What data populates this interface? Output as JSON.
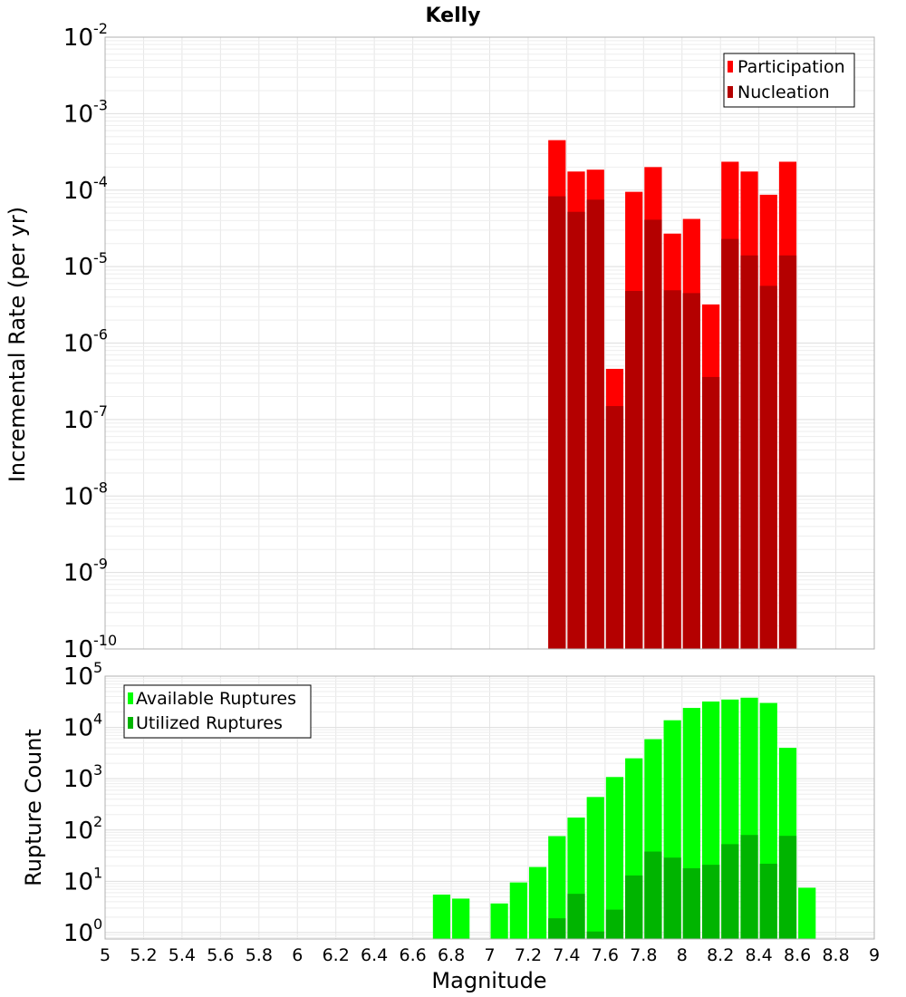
{
  "chart_data": [
    {
      "type": "bar",
      "title": "Kelly",
      "ylabel": "Incremental Rate (per yr)",
      "xlabel": "",
      "xlim": [
        5,
        9
      ],
      "ylim": [
        1e-10,
        0.01
      ],
      "yscale": "log",
      "bin_width": 0.1,
      "x_tick_values": [
        5,
        5.2,
        5.4,
        5.6,
        5.8,
        6,
        6.2,
        6.4,
        6.6,
        6.8,
        7,
        7.2,
        7.4,
        7.6,
        7.8,
        8,
        8.2,
        8.4,
        8.6,
        8.8,
        9
      ],
      "y_tick_exponents": [
        -10,
        -9,
        -8,
        -7,
        -6,
        -5,
        -4,
        -3,
        -2
      ],
      "legend_position": "top-right",
      "grid": true,
      "x": [
        7.35,
        7.45,
        7.55,
        7.65,
        7.75,
        7.85,
        7.95,
        8.05,
        8.15,
        8.25,
        8.35,
        8.45,
        8.55
      ],
      "series": [
        {
          "name": "Participation",
          "color": "#ff0000",
          "values": [
            0.00045,
            0.000175,
            0.000185,
            4.6e-07,
            9.5e-05,
            0.0002,
            2.7e-05,
            4.2e-05,
            3.2e-06,
            0.000235,
            0.000175,
            8.7e-05,
            0.000235
          ]
        },
        {
          "name": "Nucleation",
          "color": "#b40000",
          "values": [
            8.3e-05,
            5.2e-05,
            7.5e-05,
            1.5e-07,
            4.8e-06,
            4.1e-05,
            4.9e-06,
            4.5e-06,
            3.6e-07,
            2.3e-05,
            1.4e-05,
            5.6e-06,
            1.4e-05
          ]
        }
      ]
    },
    {
      "type": "bar",
      "title": "",
      "ylabel": "Rupture Count",
      "xlabel": "Magnitude",
      "xlim": [
        5,
        9
      ],
      "ylim": [
        0.75,
        100000.0
      ],
      "yscale": "log",
      "bin_width": 0.1,
      "x_tick_values": [
        5,
        5.2,
        5.4,
        5.6,
        5.8,
        6,
        6.2,
        6.4,
        6.6,
        6.8,
        7,
        7.2,
        7.4,
        7.6,
        7.8,
        8,
        8.2,
        8.4,
        8.6,
        8.8,
        9
      ],
      "x_tick_labels": [
        "5",
        "5.2",
        "5.4",
        "5.6",
        "5.8",
        "6",
        "6.2",
        "6.4",
        "6.6",
        "6.8",
        "7",
        "7.2",
        "7.4",
        "7.6",
        "7.8",
        "8",
        "8.2",
        "8.4",
        "8.6",
        "8.8",
        "9"
      ],
      "y_tick_exponents": [
        0,
        1,
        2,
        3,
        4,
        5
      ],
      "legend_position": "top-left",
      "grid": true,
      "x": [
        6.75,
        6.85,
        7.05,
        7.15,
        7.25,
        7.35,
        7.45,
        7.55,
        7.65,
        7.75,
        7.85,
        7.95,
        8.05,
        8.15,
        8.25,
        8.35,
        8.45,
        8.55,
        8.65
      ],
      "series": [
        {
          "name": "Available Ruptures",
          "color": "#00ff00",
          "values": [
            5.5,
            4.6,
            3.7,
            9.5,
            19,
            76,
            175,
            440,
            1080,
            2500,
            5900,
            13800,
            24000,
            32000,
            35000,
            38000,
            30000,
            4000,
            7.5
          ]
        },
        {
          "name": "Utilized Ruptures",
          "color": "#00b400",
          "values": [
            0,
            0,
            0,
            0,
            0,
            1.9,
            5.7,
            1.05,
            2.8,
            13,
            38,
            29,
            18,
            21,
            53,
            80,
            22,
            77,
            0
          ]
        }
      ]
    }
  ]
}
